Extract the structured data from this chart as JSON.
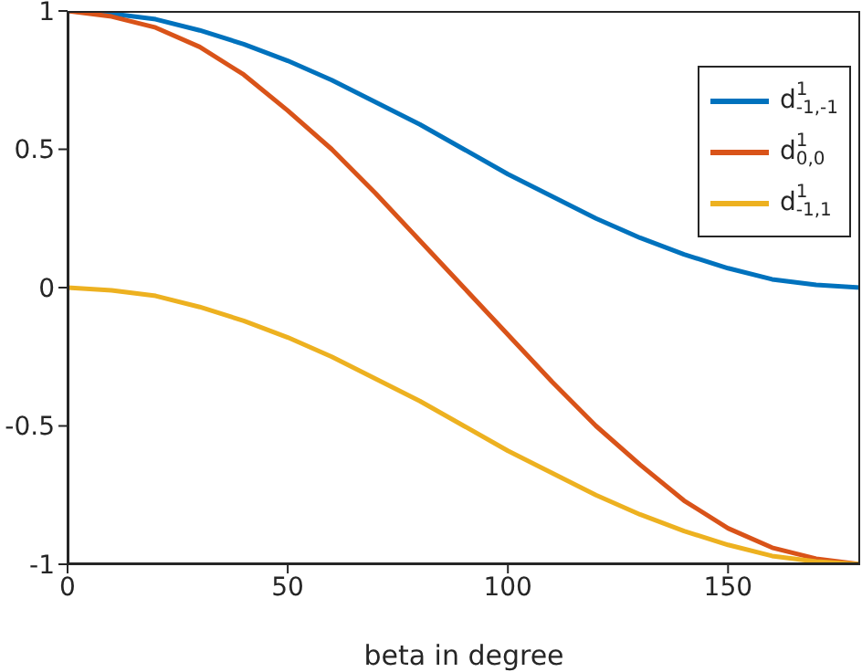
{
  "chart_data": {
    "type": "line",
    "xlabel": "beta in degree",
    "x": [
      0,
      10,
      20,
      30,
      40,
      50,
      60,
      70,
      80,
      90,
      100,
      110,
      120,
      130,
      140,
      150,
      160,
      170,
      180
    ],
    "series": [
      {
        "name": "d$^{1}$$_{-1,-1}$",
        "color": "#0072bd",
        "values": [
          1,
          0.99,
          0.97,
          0.93,
          0.88,
          0.82,
          0.75,
          0.67,
          0.59,
          0.5,
          0.41,
          0.33,
          0.25,
          0.18,
          0.12,
          0.07,
          0.03,
          0.01,
          0
        ]
      },
      {
        "name": "d$^{1}$$_{0,0}$",
        "color": "#d95319",
        "values": [
          1,
          0.98,
          0.94,
          0.87,
          0.77,
          0.64,
          0.5,
          0.34,
          0.17,
          0,
          -0.17,
          -0.34,
          -0.5,
          -0.64,
          -0.77,
          -0.87,
          -0.94,
          -0.98,
          -1
        ]
      },
      {
        "name": "d$^{1}$$_{-1,1}$",
        "color": "#edb120",
        "values": [
          0,
          -0.01,
          -0.03,
          -0.07,
          -0.12,
          -0.18,
          -0.25,
          -0.33,
          -0.41,
          -0.5,
          -0.59,
          -0.67,
          -0.75,
          -0.82,
          -0.88,
          -0.93,
          -0.97,
          -0.99,
          -1
        ]
      }
    ],
    "xlim": [
      0,
      180
    ],
    "xticks": [
      0,
      50,
      100,
      150
    ],
    "ylim": [
      -1,
      1
    ],
    "yticks": [
      -1,
      -0.5,
      0,
      0.5,
      1
    ],
    "grid": false,
    "legend": "top right",
    "marker": "none",
    "line_style": "solid"
  }
}
